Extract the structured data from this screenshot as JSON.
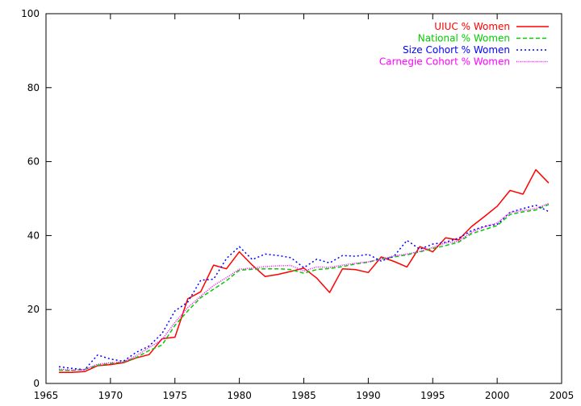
{
  "chart_data": {
    "type": "line",
    "title": "",
    "xlabel": "",
    "ylabel": "",
    "xlim": [
      1965,
      2005
    ],
    "ylim": [
      0,
      100
    ],
    "xticks": [
      1965,
      1970,
      1975,
      1980,
      1985,
      1990,
      1995,
      2000,
      2005
    ],
    "yticks": [
      0,
      20,
      40,
      60,
      80,
      100
    ],
    "grid": false,
    "legend_position": "top-right",
    "series": [
      {
        "name": "UIUC % Women",
        "color": "#ff0000",
        "dash": "solid",
        "points": [
          [
            1966,
            3.0
          ],
          [
            1967,
            3.0
          ],
          [
            1968,
            3.2
          ],
          [
            1969,
            4.8
          ],
          [
            1970,
            5.1
          ],
          [
            1971,
            5.6
          ],
          [
            1972,
            6.9
          ],
          [
            1973,
            7.8
          ],
          [
            1974,
            12.1
          ],
          [
            1975,
            12.5
          ],
          [
            1976,
            22.9
          ],
          [
            1977,
            24.8
          ],
          [
            1978,
            32.0
          ],
          [
            1979,
            31.0
          ],
          [
            1980,
            35.6
          ],
          [
            1981,
            32.0
          ],
          [
            1982,
            28.9
          ],
          [
            1983,
            29.5
          ],
          [
            1984,
            30.3
          ],
          [
            1985,
            31.2
          ],
          [
            1986,
            28.5
          ],
          [
            1987,
            24.6
          ],
          [
            1988,
            31.0
          ],
          [
            1989,
            30.8
          ],
          [
            1990,
            30.0
          ],
          [
            1991,
            34.2
          ],
          [
            1992,
            33.0
          ],
          [
            1993,
            31.5
          ],
          [
            1994,
            37.0
          ],
          [
            1995,
            35.6
          ],
          [
            1996,
            39.4
          ],
          [
            1997,
            38.8
          ],
          [
            1998,
            42.4
          ],
          [
            1999,
            45.1
          ],
          [
            2000,
            47.9
          ],
          [
            2001,
            52.2
          ],
          [
            2002,
            51.2
          ],
          [
            2003,
            57.8
          ],
          [
            2004,
            54.2
          ]
        ]
      },
      {
        "name": "National % Women",
        "color": "#00cc00",
        "dash": "dashed",
        "points": [
          [
            1966,
            3.6
          ],
          [
            1967,
            3.5
          ],
          [
            1968,
            3.8
          ],
          [
            1969,
            4.9
          ],
          [
            1970,
            5.4
          ],
          [
            1971,
            5.8
          ],
          [
            1972,
            7.0
          ],
          [
            1973,
            8.9
          ],
          [
            1974,
            10.4
          ],
          [
            1975,
            15.7
          ],
          [
            1976,
            19.6
          ],
          [
            1977,
            23.2
          ],
          [
            1978,
            25.5
          ],
          [
            1979,
            27.8
          ],
          [
            1980,
            30.6
          ],
          [
            1981,
            30.9
          ],
          [
            1982,
            31.0
          ],
          [
            1983,
            31.0
          ],
          [
            1984,
            30.8
          ],
          [
            1985,
            29.8
          ],
          [
            1986,
            30.8
          ],
          [
            1987,
            31.1
          ],
          [
            1988,
            31.6
          ],
          [
            1989,
            32.3
          ],
          [
            1990,
            32.8
          ],
          [
            1991,
            33.7
          ],
          [
            1992,
            34.2
          ],
          [
            1993,
            34.8
          ],
          [
            1994,
            35.6
          ],
          [
            1995,
            36.5
          ],
          [
            1996,
            37.3
          ],
          [
            1997,
            38.2
          ],
          [
            1998,
            40.5
          ],
          [
            1999,
            41.6
          ],
          [
            2000,
            42.7
          ],
          [
            2001,
            45.7
          ],
          [
            2002,
            46.4
          ],
          [
            2003,
            46.9
          ],
          [
            2004,
            48.4
          ]
        ]
      },
      {
        "name": "Size Cohort % Women",
        "color": "#0000ff",
        "dash": "dotted",
        "points": [
          [
            1966,
            4.5
          ],
          [
            1967,
            4.1
          ],
          [
            1968,
            3.7
          ],
          [
            1969,
            7.7
          ],
          [
            1970,
            6.6
          ],
          [
            1971,
            6.0
          ],
          [
            1972,
            8.4
          ],
          [
            1973,
            10.1
          ],
          [
            1974,
            13.5
          ],
          [
            1975,
            19.6
          ],
          [
            1976,
            22.0
          ],
          [
            1977,
            27.9
          ],
          [
            1978,
            28.2
          ],
          [
            1979,
            33.8
          ],
          [
            1980,
            37.0
          ],
          [
            1981,
            33.5
          ],
          [
            1982,
            35.0
          ],
          [
            1983,
            34.6
          ],
          [
            1984,
            34.0
          ],
          [
            1985,
            31.3
          ],
          [
            1986,
            33.6
          ],
          [
            1987,
            32.6
          ],
          [
            1988,
            34.6
          ],
          [
            1989,
            34.4
          ],
          [
            1990,
            34.9
          ],
          [
            1991,
            33.1
          ],
          [
            1992,
            34.4
          ],
          [
            1993,
            38.7
          ],
          [
            1994,
            36.3
          ],
          [
            1995,
            37.7
          ],
          [
            1996,
            38.2
          ],
          [
            1997,
            39.3
          ],
          [
            1998,
            41.3
          ],
          [
            1999,
            42.5
          ],
          [
            2000,
            43.0
          ],
          [
            2001,
            46.3
          ],
          [
            2002,
            47.3
          ],
          [
            2003,
            48.2
          ],
          [
            2004,
            46.5
          ]
        ]
      },
      {
        "name": "Carnegie Cohort % Women",
        "color": "#ff00ff",
        "dash": "fine-dotted",
        "points": [
          [
            1966,
            3.9
          ],
          [
            1967,
            3.6
          ],
          [
            1968,
            3.8
          ],
          [
            1969,
            5.2
          ],
          [
            1970,
            5.6
          ],
          [
            1971,
            5.8
          ],
          [
            1972,
            7.5
          ],
          [
            1973,
            9.7
          ],
          [
            1974,
            11.8
          ],
          [
            1975,
            16.5
          ],
          [
            1976,
            20.5
          ],
          [
            1977,
            23.6
          ],
          [
            1978,
            26.5
          ],
          [
            1979,
            28.6
          ],
          [
            1980,
            30.9
          ],
          [
            1981,
            31.2
          ],
          [
            1982,
            31.6
          ],
          [
            1983,
            31.8
          ],
          [
            1984,
            31.9
          ],
          [
            1985,
            30.4
          ],
          [
            1986,
            31.5
          ],
          [
            1987,
            31.4
          ],
          [
            1988,
            32.0
          ],
          [
            1989,
            32.5
          ],
          [
            1990,
            32.9
          ],
          [
            1991,
            33.6
          ],
          [
            1992,
            34.5
          ],
          [
            1993,
            35.0
          ],
          [
            1994,
            35.7
          ],
          [
            1995,
            36.8
          ],
          [
            1996,
            38.0
          ],
          [
            1997,
            38.5
          ],
          [
            1998,
            40.9
          ],
          [
            1999,
            42.3
          ],
          [
            2000,
            43.4
          ],
          [
            2001,
            46.2
          ],
          [
            2002,
            46.8
          ],
          [
            2003,
            47.3
          ],
          [
            2004,
            48.7
          ]
        ]
      }
    ]
  }
}
